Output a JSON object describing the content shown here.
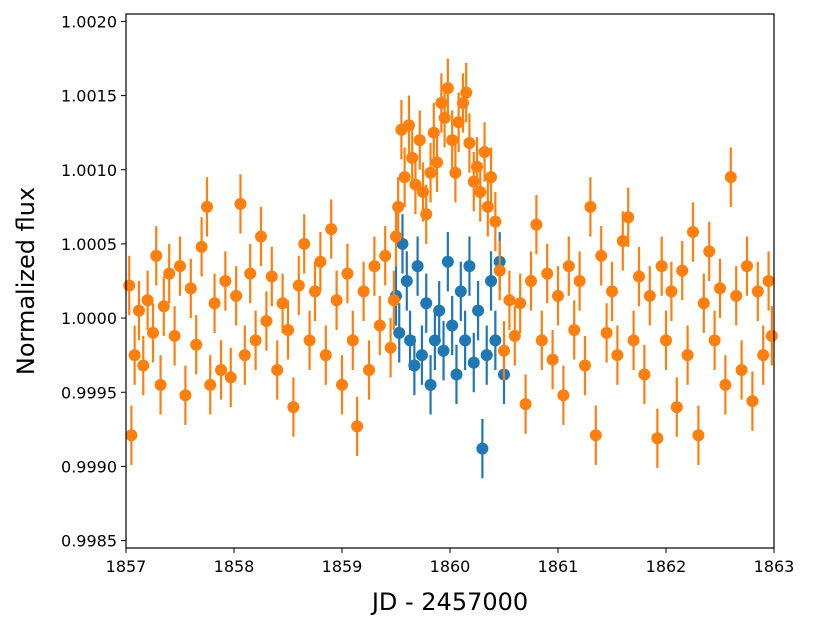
{
  "chart_data": {
    "type": "scatter",
    "title": "",
    "xlabel": "JD - 2457000",
    "ylabel": "Normalized flux",
    "xlim": [
      1857,
      1863
    ],
    "ylim": [
      0.99845,
      1.00205
    ],
    "xticks": [
      1857,
      1858,
      1859,
      1860,
      1861,
      1862,
      1863
    ],
    "xtick_labels": [
      "1857",
      "1858",
      "1859",
      "1860",
      "1861",
      "1862",
      "1863"
    ],
    "yticks": [
      0.9985,
      0.999,
      0.9995,
      1.0,
      1.0005,
      1.001,
      1.0015,
      1.002
    ],
    "ytick_labels": [
      "0.9985",
      "0.9990",
      "0.9995",
      "1.0000",
      "1.0005",
      "1.0010",
      "1.0015",
      "1.0020"
    ],
    "grid": false,
    "legend": "none",
    "errorbars": true,
    "series": [
      {
        "color": "#ff7f0e",
        "zorder": "front",
        "yerr": 0.0002,
        "points": [
          [
            1857.03,
            1.00022
          ],
          [
            1857.05,
            0.99921
          ],
          [
            1857.08,
            0.99975
          ],
          [
            1857.12,
            1.00005
          ],
          [
            1857.16,
            0.99968
          ],
          [
            1857.2,
            1.00012
          ],
          [
            1857.25,
            0.9999
          ],
          [
            1857.28,
            1.00042
          ],
          [
            1857.32,
            0.99955
          ],
          [
            1857.35,
            1.00008
          ],
          [
            1857.4,
            1.0003
          ],
          [
            1857.45,
            0.99988
          ],
          [
            1857.5,
            1.00035
          ],
          [
            1857.55,
            0.99948
          ],
          [
            1857.6,
            1.0002
          ],
          [
            1857.65,
            0.99982
          ],
          [
            1857.7,
            1.00048
          ],
          [
            1857.75,
            1.00075
          ],
          [
            1857.78,
            0.99955
          ],
          [
            1857.82,
            1.0001
          ],
          [
            1857.88,
            0.99965
          ],
          [
            1857.92,
            1.00025
          ],
          [
            1857.97,
            0.9996
          ],
          [
            1858.02,
            1.00015
          ],
          [
            1858.06,
            1.00077
          ],
          [
            1858.1,
            0.99975
          ],
          [
            1858.15,
            1.0003
          ],
          [
            1858.2,
            0.99985
          ],
          [
            1858.25,
            1.00055
          ],
          [
            1858.3,
            0.99998
          ],
          [
            1858.35,
            1.00028
          ],
          [
            1858.4,
            0.99965
          ],
          [
            1858.45,
            1.0001
          ],
          [
            1858.5,
            0.99992
          ],
          [
            1858.55,
            0.9994
          ],
          [
            1858.6,
            1.00022
          ],
          [
            1858.65,
            1.0005
          ],
          [
            1858.7,
            0.99985
          ],
          [
            1858.75,
            1.00018
          ],
          [
            1858.8,
            1.00038
          ],
          [
            1858.85,
            0.99975
          ],
          [
            1858.9,
            1.0006
          ],
          [
            1858.95,
            1.00012
          ],
          [
            1859.0,
            0.99955
          ],
          [
            1859.05,
            1.0003
          ],
          [
            1859.1,
            0.99985
          ],
          [
            1859.14,
            0.99927
          ],
          [
            1859.2,
            1.00018
          ],
          [
            1859.25,
            0.99965
          ],
          [
            1859.3,
            1.00035
          ],
          [
            1859.35,
            0.99995
          ],
          [
            1859.4,
            1.00042
          ],
          [
            1859.45,
            0.9998
          ],
          [
            1859.48,
            1.00012
          ],
          [
            1859.5,
            1.00055
          ],
          [
            1859.52,
            1.00075
          ],
          [
            1859.55,
            1.00127
          ],
          [
            1859.58,
            1.00095
          ],
          [
            1859.62,
            1.0013
          ],
          [
            1859.65,
            1.00108
          ],
          [
            1859.68,
            1.0009
          ],
          [
            1859.72,
            1.0012
          ],
          [
            1859.75,
            1.00085
          ],
          [
            1859.78,
            1.0007
          ],
          [
            1859.82,
            1.00098
          ],
          [
            1859.85,
            1.00125
          ],
          [
            1859.88,
            1.00105
          ],
          [
            1859.92,
            1.00145
          ],
          [
            1859.95,
            1.00135
          ],
          [
            1859.98,
            1.00155
          ],
          [
            1860.02,
            1.0012
          ],
          [
            1860.05,
            1.00098
          ],
          [
            1860.08,
            1.00132
          ],
          [
            1860.12,
            1.00145
          ],
          [
            1860.15,
            1.00152
          ],
          [
            1860.18,
            1.00118
          ],
          [
            1860.22,
            1.00092
          ],
          [
            1860.25,
            1.00102
          ],
          [
            1860.28,
            1.00085
          ],
          [
            1860.32,
            1.00112
          ],
          [
            1860.35,
            1.00075
          ],
          [
            1860.38,
            1.00095
          ],
          [
            1860.42,
            1.00065
          ],
          [
            1860.46,
            1.00032
          ],
          [
            1860.5,
            0.99978
          ],
          [
            1860.55,
            1.00012
          ],
          [
            1860.6,
            0.99988
          ],
          [
            1860.65,
            1.0001
          ],
          [
            1860.7,
            0.99942
          ],
          [
            1860.75,
            1.00025
          ],
          [
            1860.8,
            1.00063
          ],
          [
            1860.85,
            0.99985
          ],
          [
            1860.9,
            1.0003
          ],
          [
            1860.95,
            0.99972
          ],
          [
            1861.0,
            1.00015
          ],
          [
            1861.05,
            0.99948
          ],
          [
            1861.1,
            1.00035
          ],
          [
            1861.15,
            0.99992
          ],
          [
            1861.2,
            1.00025
          ],
          [
            1861.25,
            0.99968
          ],
          [
            1861.3,
            1.00075
          ],
          [
            1861.35,
            0.99921
          ],
          [
            1861.4,
            1.00042
          ],
          [
            1861.45,
            0.9999
          ],
          [
            1861.5,
            1.00018
          ],
          [
            1861.55,
            0.99975
          ],
          [
            1861.6,
            1.00052
          ],
          [
            1861.65,
            1.00068
          ],
          [
            1861.7,
            0.99985
          ],
          [
            1861.75,
            1.00028
          ],
          [
            1861.8,
            0.99962
          ],
          [
            1861.85,
            1.00015
          ],
          [
            1861.92,
            0.99919
          ],
          [
            1861.96,
            1.00035
          ],
          [
            1862.0,
            0.99985
          ],
          [
            1862.05,
            1.00018
          ],
          [
            1862.1,
            0.9994
          ],
          [
            1862.15,
            1.00032
          ],
          [
            1862.2,
            0.99975
          ],
          [
            1862.25,
            1.00058
          ],
          [
            1862.3,
            0.99921
          ],
          [
            1862.35,
            1.0001
          ],
          [
            1862.4,
            1.00045
          ],
          [
            1862.45,
            0.99985
          ],
          [
            1862.5,
            1.0002
          ],
          [
            1862.55,
            0.99955
          ],
          [
            1862.6,
            1.00095
          ],
          [
            1862.65,
            1.00015
          ],
          [
            1862.7,
            0.99965
          ],
          [
            1862.75,
            1.00035
          ],
          [
            1862.8,
            0.99944
          ],
          [
            1862.85,
            1.00018
          ],
          [
            1862.9,
            0.99975
          ],
          [
            1862.95,
            1.00025
          ],
          [
            1862.98,
            0.99988
          ]
        ]
      },
      {
        "color": "#1f77b4",
        "zorder": "back",
        "yerr": 0.0002,
        "points": [
          [
            1859.5,
            1.00015
          ],
          [
            1859.53,
            0.9999
          ],
          [
            1859.56,
            1.0005
          ],
          [
            1859.6,
            1.00025
          ],
          [
            1859.63,
            0.99985
          ],
          [
            1859.67,
            0.99968
          ],
          [
            1859.7,
            1.00035
          ],
          [
            1859.74,
            0.99975
          ],
          [
            1859.78,
            1.0001
          ],
          [
            1859.82,
            0.99955
          ],
          [
            1859.86,
            0.99985
          ],
          [
            1859.9,
            1.00005
          ],
          [
            1859.94,
            0.99978
          ],
          [
            1859.98,
            1.00038
          ],
          [
            1860.02,
            0.99995
          ],
          [
            1860.06,
            0.99962
          ],
          [
            1860.1,
            1.00018
          ],
          [
            1860.14,
            0.99985
          ],
          [
            1860.18,
            1.00035
          ],
          [
            1860.22,
            0.9997
          ],
          [
            1860.26,
            1.00005
          ],
          [
            1860.3,
            0.99912
          ],
          [
            1860.34,
            0.99975
          ],
          [
            1860.38,
            1.00025
          ],
          [
            1860.42,
            0.99985
          ],
          [
            1860.46,
            1.00038
          ],
          [
            1860.5,
            0.99962
          ]
        ]
      }
    ]
  }
}
